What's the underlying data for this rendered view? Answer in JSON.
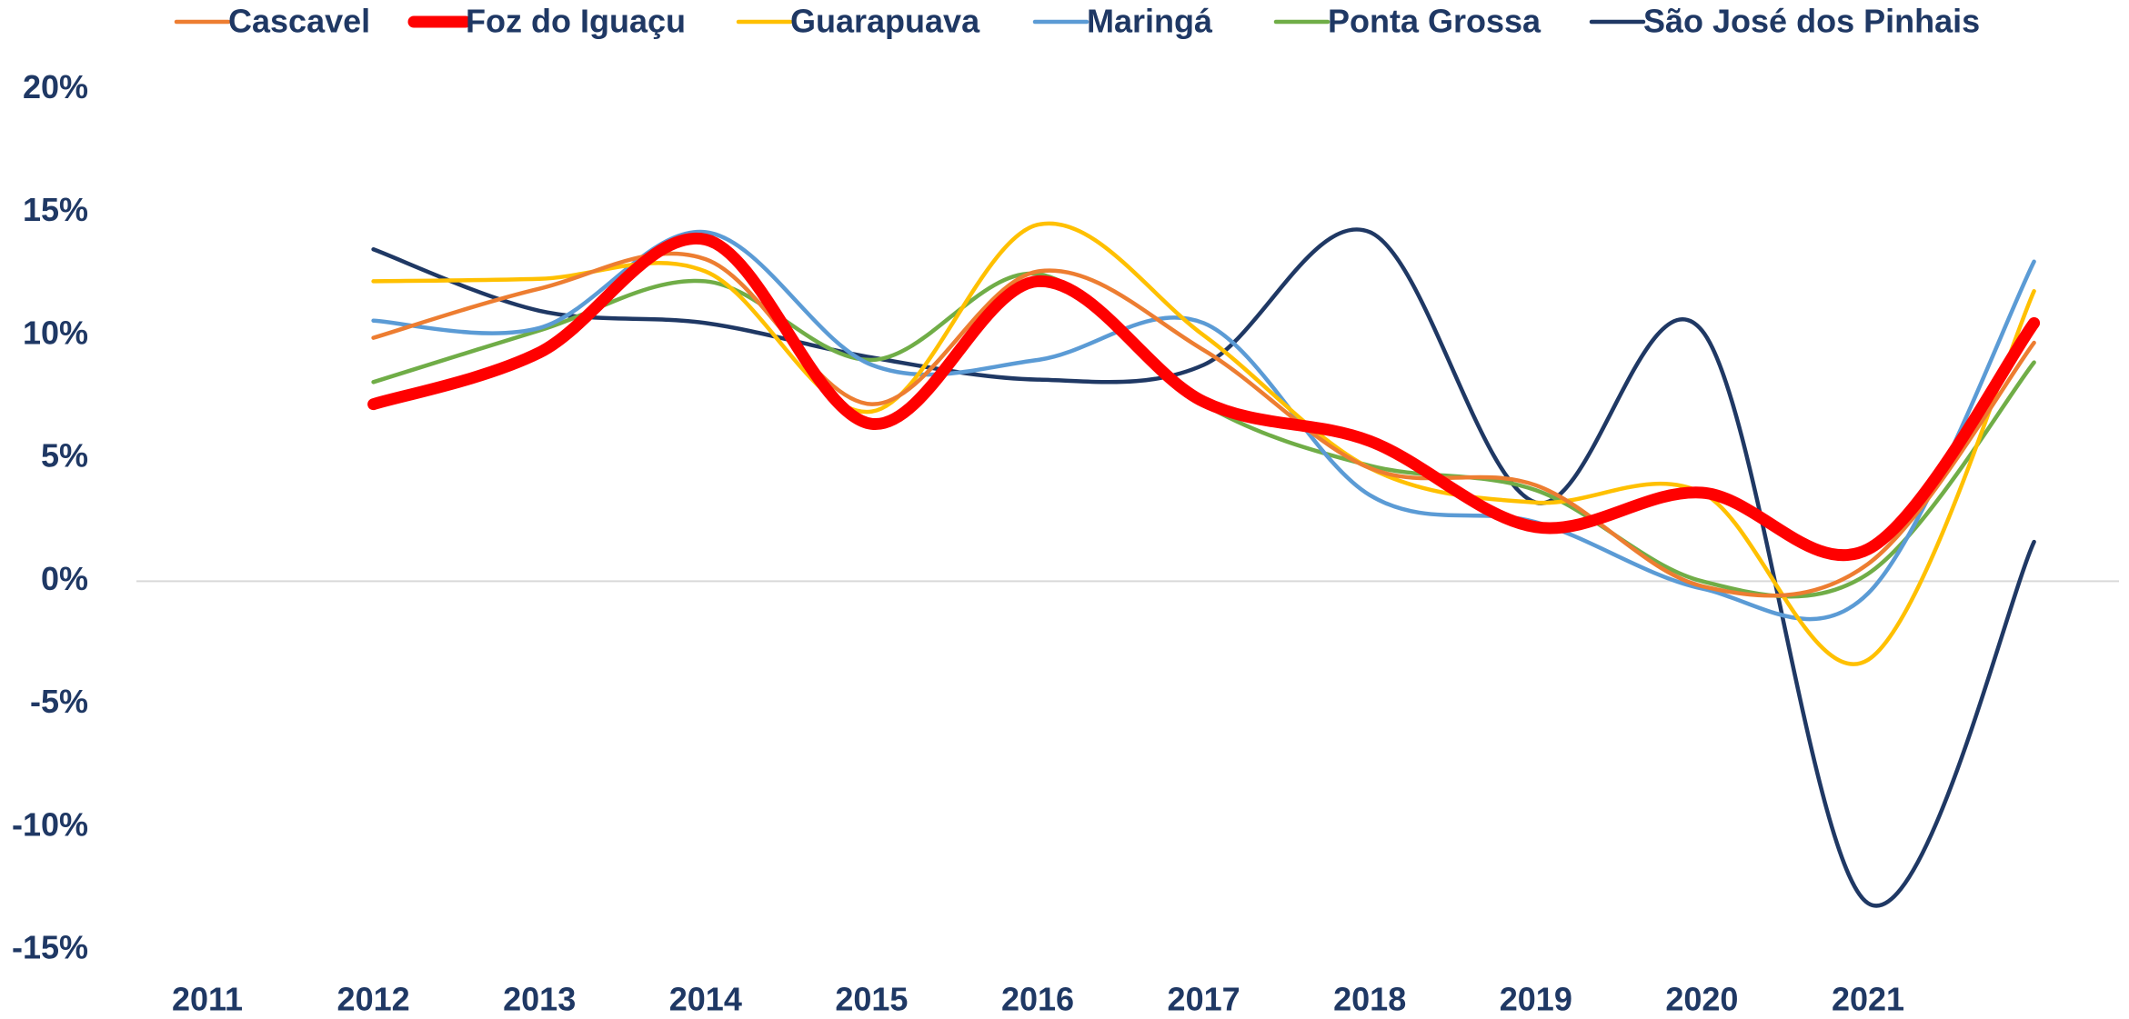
{
  "chart_data": {
    "type": "line",
    "smooth": true,
    "categories": [
      "2011",
      "2012",
      "2013",
      "2014",
      "2015",
      "2016",
      "2017",
      "2018",
      "2019",
      "2020",
      "2021",
      null
    ],
    "series": [
      {
        "name": "Cascavel",
        "color": "#ED7D31",
        "values": [
          null,
          9.9,
          11.9,
          13.1,
          7.2,
          12.6,
          9.4,
          4.6,
          3.9,
          -0.2,
          0.7,
          9.7
        ]
      },
      {
        "name": "Foz do Iguaçu",
        "color": "#FF0000",
        "values": [
          null,
          7.2,
          9.3,
          13.9,
          6.4,
          12.2,
          7.3,
          5.7,
          2.2,
          3.6,
          1.3,
          10.5
        ]
      },
      {
        "name": "Guarapuava",
        "color": "#FFC000",
        "values": [
          null,
          12.2,
          12.3,
          12.6,
          6.9,
          14.5,
          10.0,
          4.6,
          3.2,
          3.6,
          -3.2,
          11.8
        ]
      },
      {
        "name": "Maringá",
        "color": "#5B9BD5",
        "values": [
          null,
          10.6,
          10.3,
          14.2,
          8.8,
          9.0,
          10.5,
          3.5,
          2.4,
          -0.3,
          -0.5,
          13.0
        ]
      },
      {
        "name": "Ponta Grossa",
        "color": "#70AD47",
        "values": [
          null,
          8.1,
          10.2,
          12.2,
          9.0,
          12.5,
          7.2,
          4.7,
          3.7,
          0.0,
          0.3,
          8.9
        ]
      },
      {
        "name": "São José dos Pinhais",
        "color": "#1F3864",
        "values": [
          null,
          13.5,
          11.0,
          10.5,
          9.1,
          8.2,
          8.8,
          14.2,
          3.2,
          10.2,
          -13.1,
          1.6
        ]
      }
    ],
    "ylim": [
      -15,
      20
    ],
    "yticks": [
      {
        "value": -15,
        "label": "-15%"
      },
      {
        "value": -10,
        "label": "-10%"
      },
      {
        "value": -5,
        "label": "-5%"
      },
      {
        "value": 0,
        "label": "0%"
      },
      {
        "value": 5,
        "label": "5%"
      },
      {
        "value": 10,
        "label": "10%"
      },
      {
        "value": 15,
        "label": "15%"
      },
      {
        "value": 20,
        "label": "20%"
      }
    ],
    "legend": "top"
  }
}
